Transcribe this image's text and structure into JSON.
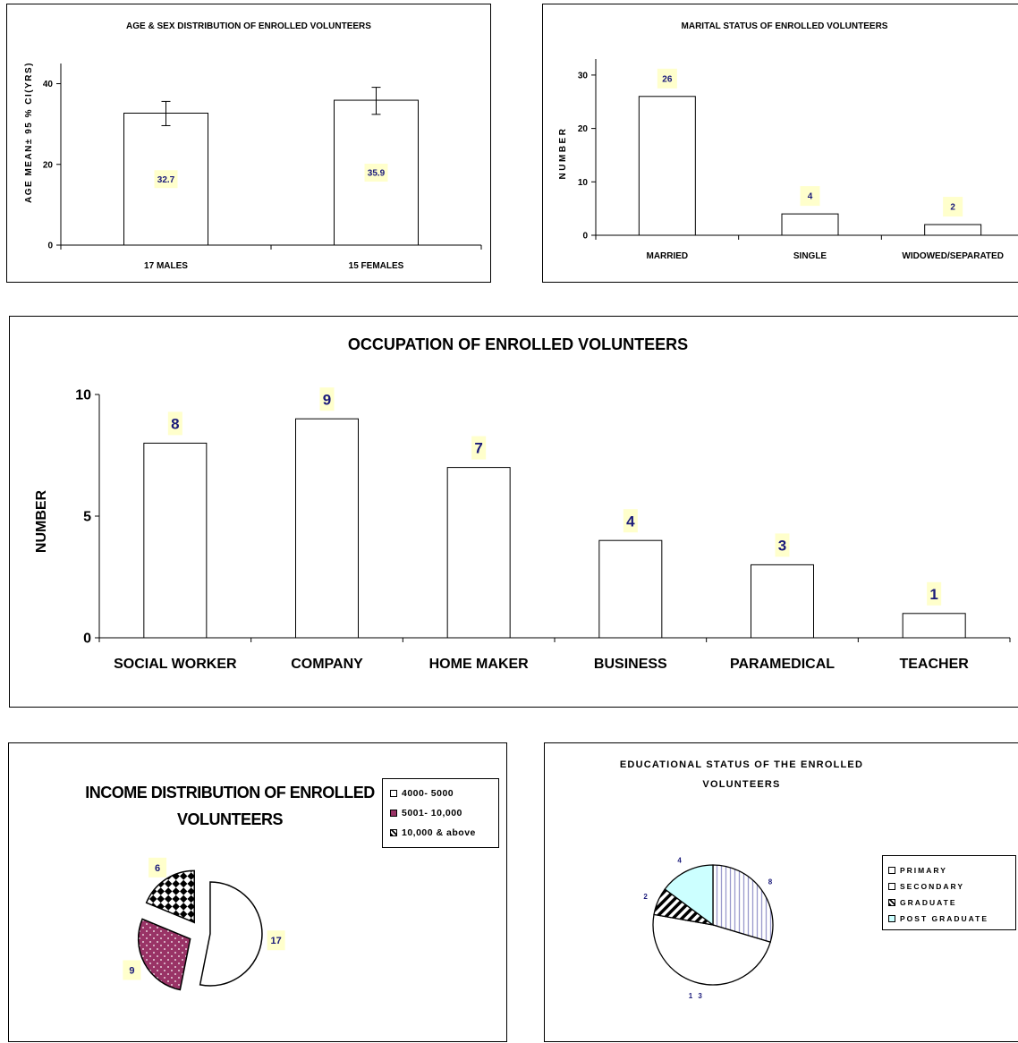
{
  "chart_data": [
    {
      "id": "age",
      "type": "bar",
      "title": "AGE & SEX DISTRIBUTION OF ENROLLED VOLUNTEERS",
      "ylabel": "AGE MEAN± 95 % CI(YRS)",
      "categories": [
        "17 MALES",
        "15 FEMALES"
      ],
      "values": [
        32.7,
        35.9
      ],
      "value_labels": [
        "32.7",
        "35.9"
      ],
      "error_low": [
        29.6,
        32.4
      ],
      "error_high": [
        35.6,
        39.1
      ],
      "ylim": [
        0,
        45
      ],
      "yticks": [
        0,
        20,
        40
      ]
    },
    {
      "id": "marital",
      "type": "bar",
      "title": "MARITAL STATUS OF ENROLLED VOLUNTEERS",
      "ylabel": "NUMBER",
      "categories": [
        "MARRIED",
        "SINGLE",
        "WIDOWED/SEPARATED"
      ],
      "values": [
        26,
        4,
        2
      ],
      "value_labels": [
        "26",
        "4",
        "2"
      ],
      "ylim": [
        0,
        33
      ],
      "yticks": [
        0,
        10,
        20,
        30
      ]
    },
    {
      "id": "occupation",
      "type": "bar",
      "title": "OCCUPATION OF ENROLLED VOLUNTEERS",
      "ylabel": "NUMBER",
      "categories": [
        "SOCIAL WORKER",
        "COMPANY",
        "HOME MAKER",
        "BUSINESS",
        "PARAMEDICAL",
        "TEACHER"
      ],
      "values": [
        8,
        9,
        7,
        4,
        3,
        1
      ],
      "value_labels": [
        "8",
        "9",
        "7",
        "4",
        "3",
        "1"
      ],
      "ylim": [
        0,
        10
      ],
      "yticks": [
        0,
        5,
        10
      ]
    },
    {
      "id": "income",
      "type": "pie",
      "title_lines": [
        "INCOME DISTRIBUTION OF ENROLLED",
        "VOLUNTEERS"
      ],
      "slices": [
        {
          "label": "4000- 5000",
          "value": 17,
          "value_label": "17",
          "fill": "#ffffff",
          "pattern": "none"
        },
        {
          "label": "5001- 10,000",
          "value": 9,
          "value_label": "9",
          "fill": "#993366",
          "pattern": "dots"
        },
        {
          "label": "10,000 & above",
          "value": 6,
          "value_label": "6",
          "fill": "#ffffff",
          "pattern": "checker"
        }
      ],
      "legend": "right"
    },
    {
      "id": "education",
      "type": "pie",
      "title_lines": [
        "EDUCATIONAL STATUS OF THE ENROLLED",
        "VOLUNTEERS"
      ],
      "slices": [
        {
          "label": "PRIMARY",
          "value": 8,
          "value_label": "8",
          "fill": "#ccccff",
          "pattern": "vlines"
        },
        {
          "label": "SECONDARY",
          "value": 13,
          "value_label": "1 3",
          "fill": "#ffffff",
          "pattern": "none"
        },
        {
          "label": "GRADUATE",
          "value": 2,
          "value_label": "2",
          "fill": "#ffffff",
          "pattern": "diag"
        },
        {
          "label": "POST GRADUATE",
          "value": 4,
          "value_label": "4",
          "fill": "#ccffff",
          "pattern": "none"
        }
      ],
      "legend": "right"
    }
  ],
  "colors": {
    "value_label_bg": "#ffffcc",
    "value_label_text": "#1a1a7a"
  }
}
